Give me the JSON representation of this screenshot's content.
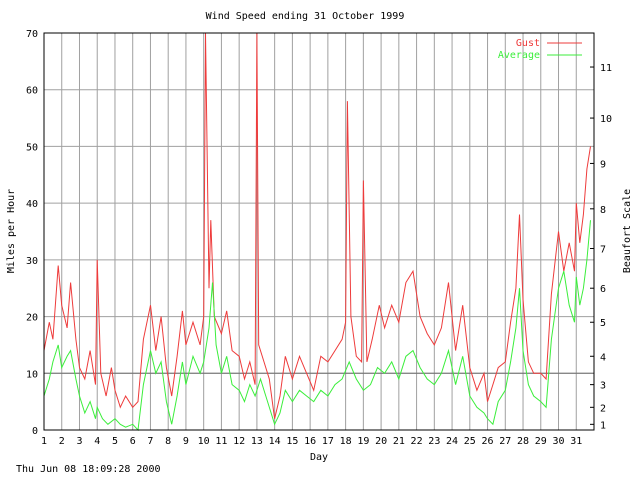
{
  "footer_timestamp": "Thu Jun 08 18:09:28 2000",
  "chart_data": {
    "type": "line",
    "title": "Wind Speed ending 31 October 1999",
    "xlabel": "Day",
    "ylabel": "Miles per Hour",
    "y2label": "Beaufort Scale",
    "xlim": [
      1,
      32
    ],
    "ylim": [
      0,
      70
    ],
    "grid": true,
    "legend": "top-right",
    "x_ticks": [
      "1",
      "2",
      "3",
      "4",
      "5",
      "6",
      "7",
      "8",
      "9",
      "10",
      "11",
      "12",
      "13",
      "14",
      "15",
      "16",
      "17",
      "18",
      "19",
      "20",
      "21",
      "22",
      "23",
      "24",
      "25",
      "26",
      "27",
      "28",
      "29",
      "30",
      "31"
    ],
    "y_ticks": [
      0,
      10,
      20,
      30,
      40,
      50,
      60,
      70
    ],
    "beaufort_ticks": [
      {
        "label": "1",
        "mph": 1
      },
      {
        "label": "2",
        "mph": 4
      },
      {
        "label": "3",
        "mph": 8
      },
      {
        "label": "4",
        "mph": 13
      },
      {
        "label": "5",
        "mph": 19
      },
      {
        "label": "6",
        "mph": 25
      },
      {
        "label": "7",
        "mph": 32
      },
      {
        "label": "8",
        "mph": 39
      },
      {
        "label": "9",
        "mph": 47
      },
      {
        "label": "10",
        "mph": 55
      },
      {
        "label": "11",
        "mph": 64
      }
    ],
    "reference_lines": [
      10
    ],
    "series": [
      {
        "name": "Gust",
        "color": "#ee3b3b",
        "points": [
          [
            1,
            14
          ],
          [
            1.3,
            19
          ],
          [
            1.5,
            16
          ],
          [
            1.8,
            29
          ],
          [
            2,
            22
          ],
          [
            2.3,
            18
          ],
          [
            2.5,
            26
          ],
          [
            2.8,
            16
          ],
          [
            3,
            11
          ],
          [
            3.3,
            9
          ],
          [
            3.6,
            14
          ],
          [
            3.9,
            8
          ],
          [
            4,
            30
          ],
          [
            4.2,
            10
          ],
          [
            4.5,
            6
          ],
          [
            4.8,
            11
          ],
          [
            5,
            7
          ],
          [
            5.3,
            4
          ],
          [
            5.6,
            6
          ],
          [
            6,
            4
          ],
          [
            6.3,
            5
          ],
          [
            6.6,
            16
          ],
          [
            7,
            22
          ],
          [
            7.3,
            14
          ],
          [
            7.6,
            20
          ],
          [
            7.9,
            11
          ],
          [
            8.2,
            6
          ],
          [
            8.5,
            13
          ],
          [
            8.8,
            21
          ],
          [
            9,
            15
          ],
          [
            9.4,
            19
          ],
          [
            9.8,
            15
          ],
          [
            10,
            20
          ],
          [
            10.1,
            70
          ],
          [
            10.3,
            25
          ],
          [
            10.4,
            37
          ],
          [
            10.6,
            20
          ],
          [
            11,
            17
          ],
          [
            11.3,
            21
          ],
          [
            11.6,
            14
          ],
          [
            12,
            13
          ],
          [
            12.3,
            9
          ],
          [
            12.6,
            12
          ],
          [
            12.9,
            8
          ],
          [
            13,
            70
          ],
          [
            13.1,
            15
          ],
          [
            13.4,
            12
          ],
          [
            13.7,
            9
          ],
          [
            14,
            2
          ],
          [
            14.3,
            6
          ],
          [
            14.6,
            13
          ],
          [
            15,
            9
          ],
          [
            15.4,
            13
          ],
          [
            15.8,
            10
          ],
          [
            16.2,
            7
          ],
          [
            16.6,
            13
          ],
          [
            17,
            12
          ],
          [
            17.4,
            14
          ],
          [
            17.8,
            16
          ],
          [
            18,
            19
          ],
          [
            18.1,
            58
          ],
          [
            18.3,
            20
          ],
          [
            18.6,
            13
          ],
          [
            18.9,
            12
          ],
          [
            19,
            44
          ],
          [
            19.2,
            12
          ],
          [
            19.5,
            16
          ],
          [
            19.9,
            22
          ],
          [
            20.2,
            18
          ],
          [
            20.6,
            22
          ],
          [
            21,
            19
          ],
          [
            21.4,
            26
          ],
          [
            21.8,
            28
          ],
          [
            22.2,
            20
          ],
          [
            22.6,
            17
          ],
          [
            23,
            15
          ],
          [
            23.4,
            18
          ],
          [
            23.8,
            26
          ],
          [
            24.2,
            14
          ],
          [
            24.6,
            22
          ],
          [
            25,
            11
          ],
          [
            25.4,
            7
          ],
          [
            25.8,
            10
          ],
          [
            26,
            5
          ],
          [
            26.3,
            8
          ],
          [
            26.6,
            11
          ],
          [
            27,
            12
          ],
          [
            27.3,
            19
          ],
          [
            27.6,
            25
          ],
          [
            27.8,
            38
          ],
          [
            28,
            23
          ],
          [
            28.3,
            12
          ],
          [
            28.6,
            10
          ],
          [
            29,
            10
          ],
          [
            29.3,
            9
          ],
          [
            29.6,
            24
          ],
          [
            30,
            35
          ],
          [
            30.3,
            28
          ],
          [
            30.6,
            33
          ],
          [
            30.9,
            28
          ],
          [
            31,
            40
          ],
          [
            31.2,
            33
          ],
          [
            31.4,
            38
          ],
          [
            31.6,
            46
          ],
          [
            31.8,
            50
          ]
        ]
      },
      {
        "name": "Average",
        "color": "#3bee3b",
        "points": [
          [
            1,
            6
          ],
          [
            1.3,
            9
          ],
          [
            1.5,
            12
          ],
          [
            1.8,
            15
          ],
          [
            2,
            11
          ],
          [
            2.3,
            13
          ],
          [
            2.5,
            14
          ],
          [
            2.8,
            9
          ],
          [
            3,
            6
          ],
          [
            3.3,
            3
          ],
          [
            3.6,
            5
          ],
          [
            3.9,
            2
          ],
          [
            4,
            4
          ],
          [
            4.3,
            2
          ],
          [
            4.6,
            1
          ],
          [
            5,
            2
          ],
          [
            5.3,
            1
          ],
          [
            5.6,
            0.5
          ],
          [
            6,
            1
          ],
          [
            6.3,
            0
          ],
          [
            6.6,
            8
          ],
          [
            7,
            14
          ],
          [
            7.3,
            10
          ],
          [
            7.6,
            12
          ],
          [
            7.9,
            5
          ],
          [
            8.2,
            1
          ],
          [
            8.5,
            6
          ],
          [
            8.8,
            12
          ],
          [
            9,
            8
          ],
          [
            9.4,
            13
          ],
          [
            9.8,
            10
          ],
          [
            10,
            12
          ],
          [
            10.3,
            18
          ],
          [
            10.5,
            26
          ],
          [
            10.7,
            15
          ],
          [
            11,
            10
          ],
          [
            11.3,
            13
          ],
          [
            11.6,
            8
          ],
          [
            12,
            7
          ],
          [
            12.3,
            5
          ],
          [
            12.6,
            8
          ],
          [
            12.9,
            6
          ],
          [
            13.2,
            9
          ],
          [
            13.5,
            6
          ],
          [
            13.8,
            3
          ],
          [
            14,
            1
          ],
          [
            14.3,
            3
          ],
          [
            14.6,
            7
          ],
          [
            15,
            5
          ],
          [
            15.4,
            7
          ],
          [
            15.8,
            6
          ],
          [
            16.2,
            5
          ],
          [
            16.6,
            7
          ],
          [
            17,
            6
          ],
          [
            17.4,
            8
          ],
          [
            17.8,
            9
          ],
          [
            18.2,
            12
          ],
          [
            18.6,
            9
          ],
          [
            19,
            7
          ],
          [
            19.4,
            8
          ],
          [
            19.8,
            11
          ],
          [
            20.2,
            10
          ],
          [
            20.6,
            12
          ],
          [
            21,
            9
          ],
          [
            21.4,
            13
          ],
          [
            21.8,
            14
          ],
          [
            22.2,
            11
          ],
          [
            22.6,
            9
          ],
          [
            23,
            8
          ],
          [
            23.4,
            10
          ],
          [
            23.8,
            14
          ],
          [
            24.2,
            8
          ],
          [
            24.6,
            13
          ],
          [
            25,
            6
          ],
          [
            25.4,
            4
          ],
          [
            25.8,
            3
          ],
          [
            26,
            2
          ],
          [
            26.3,
            1
          ],
          [
            26.6,
            5
          ],
          [
            27,
            7
          ],
          [
            27.3,
            12
          ],
          [
            27.6,
            18
          ],
          [
            27.8,
            25
          ],
          [
            28,
            14
          ],
          [
            28.3,
            8
          ],
          [
            28.6,
            6
          ],
          [
            29,
            5
          ],
          [
            29.3,
            4
          ],
          [
            29.6,
            16
          ],
          [
            30,
            25
          ],
          [
            30.3,
            28
          ],
          [
            30.6,
            22
          ],
          [
            30.9,
            19
          ],
          [
            31,
            27
          ],
          [
            31.2,
            22
          ],
          [
            31.4,
            25
          ],
          [
            31.6,
            30
          ],
          [
            31.8,
            37
          ]
        ]
      }
    ]
  }
}
